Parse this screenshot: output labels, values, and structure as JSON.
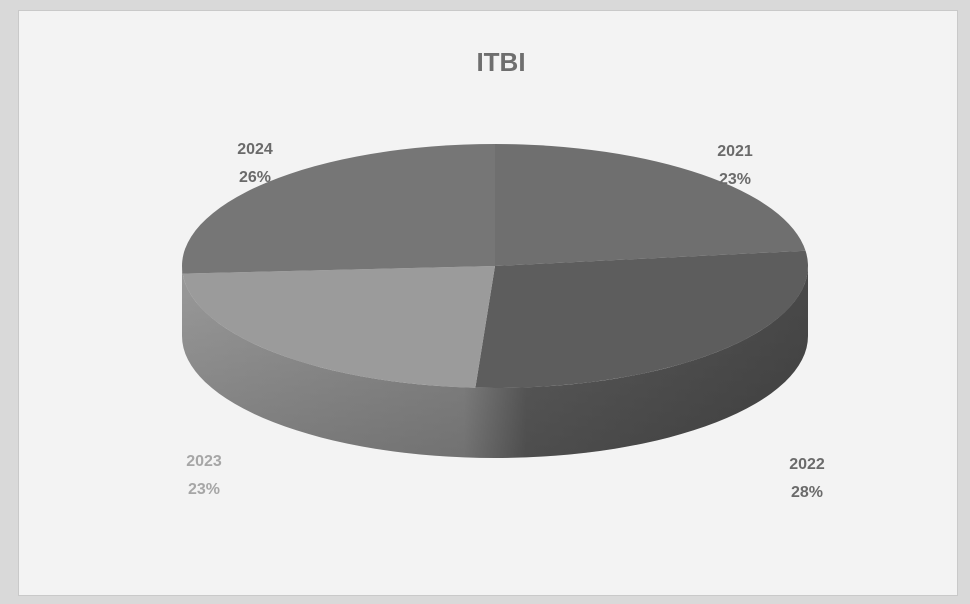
{
  "chart_data": {
    "type": "pie",
    "title": "ITBI",
    "categories": [
      "2021",
      "2022",
      "2023",
      "2024"
    ],
    "values": [
      23,
      28,
      23,
      26
    ],
    "value_labels": [
      "23%",
      "28%",
      "23%",
      "26%"
    ],
    "colors": {
      "2021": "#6f6f6f",
      "2022": "#5d5d5d",
      "2023": "#9b9b9b",
      "2024": "#767676"
    },
    "legend": "none",
    "style": "3d"
  }
}
